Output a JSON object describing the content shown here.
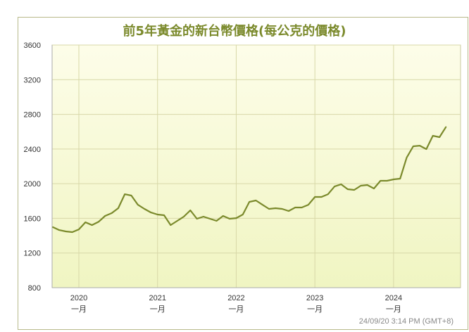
{
  "chart_data": {
    "type": "line",
    "title": "前5年黃金的新台幣價格(每公克的價格)",
    "xlabel": "",
    "ylabel": "",
    "ylim": [
      800,
      3600
    ],
    "yticks": [
      800,
      1200,
      1600,
      2000,
      2400,
      2800,
      3200,
      3600
    ],
    "xticks": [
      {
        "date": "2020-01",
        "label": "2020",
        "sublabel": "一月"
      },
      {
        "date": "2021-01",
        "label": "2021",
        "sublabel": "一月"
      },
      {
        "date": "2022-01",
        "label": "2022",
        "sublabel": "一月"
      },
      {
        "date": "2023-01",
        "label": "2023",
        "sublabel": "一月"
      },
      {
        "date": "2024-01",
        "label": "2024",
        "sublabel": "一月"
      }
    ],
    "grid": true,
    "line_color": "#7b8a2c",
    "background_gradient": [
      "#fdfde9",
      "#f0f5c2"
    ],
    "x": [
      "2019-09",
      "2019-10",
      "2019-11",
      "2019-12",
      "2020-01",
      "2020-02",
      "2020-03",
      "2020-04",
      "2020-05",
      "2020-06",
      "2020-07",
      "2020-08",
      "2020-09",
      "2020-10",
      "2020-11",
      "2020-12",
      "2021-01",
      "2021-02",
      "2021-03",
      "2021-04",
      "2021-05",
      "2021-06",
      "2021-07",
      "2021-08",
      "2021-09",
      "2021-10",
      "2021-11",
      "2021-12",
      "2022-01",
      "2022-02",
      "2022-03",
      "2022-04",
      "2022-05",
      "2022-06",
      "2022-07",
      "2022-08",
      "2022-09",
      "2022-10",
      "2022-11",
      "2022-12",
      "2023-01",
      "2023-02",
      "2023-03",
      "2023-04",
      "2023-05",
      "2023-06",
      "2023-07",
      "2023-08",
      "2023-09",
      "2023-10",
      "2023-11",
      "2023-12",
      "2024-01",
      "2024-02",
      "2024-03",
      "2024-04",
      "2024-05",
      "2024-06",
      "2024-07",
      "2024-08",
      "2024-09"
    ],
    "values": [
      1500,
      1465,
      1449,
      1441,
      1473,
      1555,
      1522,
      1560,
      1628,
      1660,
      1717,
      1879,
      1863,
      1757,
      1709,
      1668,
      1644,
      1636,
      1522,
      1571,
      1620,
      1693,
      1595,
      1620,
      1595,
      1571,
      1628,
      1595,
      1603,
      1644,
      1790,
      1806,
      1757,
      1709,
      1717,
      1709,
      1685,
      1725,
      1725,
      1757,
      1847,
      1847,
      1879,
      1968,
      1993,
      1936,
      1928,
      1977,
      1985,
      1944,
      2034,
      2034,
      2050,
      2058,
      2301,
      2431,
      2439,
      2399,
      2553,
      2537,
      2656
    ]
  },
  "timestamp": "24/09/20 3:14 PM (GMT+8)"
}
